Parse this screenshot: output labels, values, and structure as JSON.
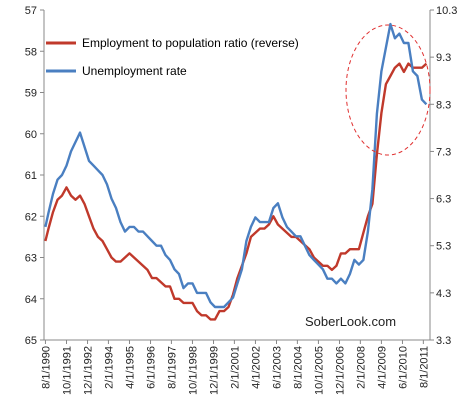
{
  "chart_data": {
    "type": "line",
    "grid": false,
    "legend_placement": "top-left",
    "series": [
      {
        "name": "Employment to population ratio (reverse)",
        "axis": "left",
        "color": "#c0392b",
        "x": [
          1990.58,
          1990.75,
          1991.0,
          1991.25,
          1991.5,
          1991.75,
          1992.0,
          1992.25,
          1992.5,
          1992.75,
          1993.0,
          1993.25,
          1993.5,
          1993.75,
          1994.0,
          1994.25,
          1994.5,
          1994.75,
          1995.0,
          1995.25,
          1995.5,
          1995.75,
          1996.0,
          1996.25,
          1996.5,
          1996.75,
          1997.0,
          1997.25,
          1997.5,
          1997.75,
          1998.0,
          1998.25,
          1998.5,
          1998.75,
          1999.0,
          1999.25,
          1999.5,
          1999.75,
          2000.0,
          2000.25,
          2000.5,
          2000.75,
          2001.0,
          2001.25,
          2001.5,
          2001.75,
          2002.0,
          2002.25,
          2002.5,
          2002.75,
          2003.0,
          2003.25,
          2003.5,
          2003.75,
          2004.0,
          2004.25,
          2004.5,
          2004.75,
          2005.0,
          2005.25,
          2005.5,
          2005.75,
          2006.0,
          2006.25,
          2006.5,
          2006.75,
          2007.0,
          2007.25,
          2007.5,
          2007.75,
          2008.0,
          2008.25,
          2008.5,
          2008.75,
          2009.0,
          2009.25,
          2009.5,
          2009.75,
          2010.0,
          2010.25,
          2010.5,
          2010.75,
          2011.0,
          2011.25,
          2011.5,
          2011.75
        ],
        "values": [
          62.6,
          62.3,
          61.9,
          61.6,
          61.5,
          61.3,
          61.5,
          61.6,
          61.5,
          61.7,
          62.0,
          62.3,
          62.5,
          62.6,
          62.8,
          63.0,
          63.1,
          63.1,
          63.0,
          62.9,
          63.0,
          63.1,
          63.2,
          63.3,
          63.5,
          63.5,
          63.6,
          63.7,
          63.7,
          64.0,
          64.0,
          64.1,
          64.1,
          64.1,
          64.3,
          64.4,
          64.4,
          64.5,
          64.5,
          64.3,
          64.3,
          64.2,
          63.9,
          63.5,
          63.2,
          62.9,
          62.5,
          62.4,
          62.3,
          62.3,
          62.2,
          62.0,
          62.2,
          62.3,
          62.4,
          62.5,
          62.5,
          62.6,
          62.7,
          62.8,
          63.0,
          63.1,
          63.2,
          63.2,
          63.3,
          63.2,
          62.9,
          62.9,
          62.8,
          62.8,
          62.8,
          62.4,
          62.0,
          61.7,
          60.5,
          59.5,
          58.8,
          58.6,
          58.4,
          58.3,
          58.5,
          58.3,
          58.4,
          58.4,
          58.4,
          58.3
        ]
      },
      {
        "name": "Unemployment rate",
        "axis": "right",
        "color": "#4a7fc1",
        "x": [
          1990.58,
          1990.75,
          1991.0,
          1991.25,
          1991.5,
          1991.75,
          1992.0,
          1992.25,
          1992.5,
          1992.75,
          1993.0,
          1993.25,
          1993.5,
          1993.75,
          1994.0,
          1994.25,
          1994.5,
          1994.75,
          1995.0,
          1995.25,
          1995.5,
          1995.75,
          1996.0,
          1996.25,
          1996.5,
          1996.75,
          1997.0,
          1997.25,
          1997.5,
          1997.75,
          1998.0,
          1998.25,
          1998.5,
          1998.75,
          1999.0,
          1999.25,
          1999.5,
          1999.75,
          2000.0,
          2000.25,
          2000.5,
          2000.75,
          2001.0,
          2001.25,
          2001.5,
          2001.75,
          2002.0,
          2002.25,
          2002.5,
          2002.75,
          2003.0,
          2003.25,
          2003.5,
          2003.75,
          2004.0,
          2004.25,
          2004.5,
          2004.75,
          2005.0,
          2005.25,
          2005.5,
          2005.75,
          2006.0,
          2006.25,
          2006.5,
          2006.75,
          2007.0,
          2007.25,
          2007.5,
          2007.75,
          2008.0,
          2008.25,
          2008.5,
          2008.75,
          2009.0,
          2009.25,
          2009.5,
          2009.75,
          2010.0,
          2010.25,
          2010.5,
          2010.75,
          2011.0,
          2011.25,
          2011.5,
          2011.75
        ],
        "values": [
          5.7,
          6.0,
          6.4,
          6.7,
          6.8,
          7.0,
          7.3,
          7.5,
          7.7,
          7.4,
          7.1,
          7.0,
          6.9,
          6.8,
          6.6,
          6.3,
          6.1,
          5.8,
          5.6,
          5.7,
          5.7,
          5.6,
          5.6,
          5.5,
          5.4,
          5.3,
          5.3,
          5.1,
          5.0,
          4.8,
          4.7,
          4.4,
          4.5,
          4.5,
          4.3,
          4.3,
          4.3,
          4.1,
          4.0,
          4.0,
          4.0,
          4.1,
          4.2,
          4.5,
          4.8,
          5.4,
          5.7,
          5.9,
          5.8,
          5.8,
          5.8,
          6.1,
          6.2,
          5.9,
          5.7,
          5.6,
          5.5,
          5.5,
          5.3,
          5.1,
          5.0,
          4.9,
          4.8,
          4.6,
          4.6,
          4.5,
          4.6,
          4.5,
          4.7,
          5.0,
          4.9,
          5.0,
          5.6,
          6.5,
          8.1,
          9.0,
          9.5,
          10.0,
          9.7,
          9.8,
          9.6,
          9.6,
          9.0,
          8.9,
          8.4,
          8.3
        ]
      }
    ],
    "y_left": {
      "ticks": [
        "57",
        "58",
        "59",
        "60",
        "61",
        "62",
        "63",
        "64",
        "65"
      ],
      "ylim": [
        57,
        65
      ],
      "reversed": true
    },
    "y_right": {
      "ticks": [
        "10.3",
        "9.3",
        "8.3",
        "7.3",
        "6.3",
        "5.3",
        "4.3",
        "3.3"
      ],
      "ylim": [
        3.3,
        10.3
      ]
    },
    "x_ticks": [
      "8/1/1990",
      "10/1/1991",
      "12/1/1992",
      "2/1/1994",
      "4/1/1995",
      "6/1/1996",
      "8/1/1997",
      "10/1/1998",
      "12/1/1999",
      "2/1/2001",
      "4/1/2002",
      "6/1/2003",
      "8/1/2004",
      "10/1/2005",
      "12/1/2006",
      "2/1/2008",
      "4/1/2009",
      "6/1/2010",
      "8/1/2011"
    ],
    "x_tick_values": [
      1990.58,
      1991.75,
      1992.92,
      1994.08,
      1995.25,
      1996.42,
      1997.58,
      1998.75,
      1999.92,
      2001.08,
      2002.25,
      2003.42,
      2004.58,
      2005.75,
      2006.92,
      2008.08,
      2009.25,
      2010.42,
      2011.58
    ],
    "xlim": [
      1990.5,
      2011.95
    ],
    "annotations": [
      "SoberLook.com"
    ],
    "highlight_circle_color": "#e03030"
  }
}
